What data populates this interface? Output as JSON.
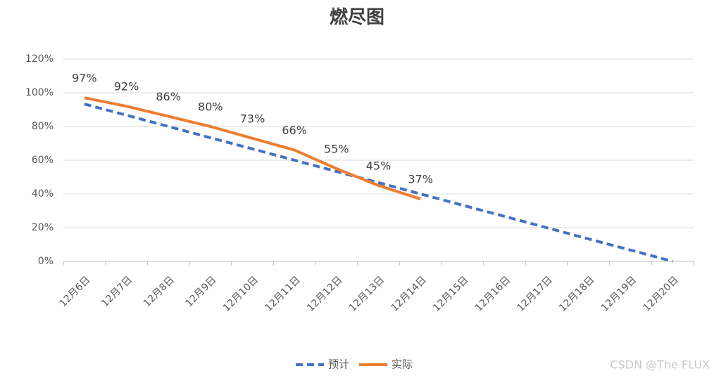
{
  "chart_data": {
    "type": "line",
    "title": "燃尽图",
    "categories": [
      "12月6日",
      "12月7日",
      "12月8日",
      "12月9日",
      "12月10日",
      "12月11日",
      "12月12日",
      "12月13日",
      "12月14日",
      "12月15日",
      "12月16日",
      "12月17日",
      "12月18日",
      "12月19日",
      "12月20日"
    ],
    "series": [
      {
        "name": "预计",
        "color": "#4472c4",
        "dashed": true,
        "values": [
          93.3,
          86.7,
          80,
          73.3,
          66.7,
          60,
          53.3,
          46.7,
          40,
          33.3,
          26.7,
          20,
          13.3,
          6.7,
          0
        ]
      },
      {
        "name": "实际",
        "color": "#ed7d31",
        "values": [
          97,
          92,
          86,
          80,
          73,
          66,
          55,
          45,
          37,
          null,
          null,
          null,
          null,
          null,
          null
        ],
        "value_labels": [
          "97%",
          "92%",
          "86%",
          "80%",
          "73%",
          "66%",
          "55%",
          "45%",
          "37%",
          null,
          null,
          null,
          null,
          null,
          null
        ]
      }
    ],
    "ylim": [
      0,
      120
    ],
    "yticks": [
      {
        "value": 0,
        "label": "0%"
      },
      {
        "value": 20,
        "label": "20%"
      },
      {
        "value": 40,
        "label": "40%"
      },
      {
        "value": 60,
        "label": "60%"
      },
      {
        "value": 80,
        "label": "80%"
      },
      {
        "value": 100,
        "label": "100%"
      },
      {
        "value": 120,
        "label": "120%"
      }
    ],
    "grid": true,
    "legend": "bottom",
    "watermark": "CSDN @The FLUX"
  }
}
